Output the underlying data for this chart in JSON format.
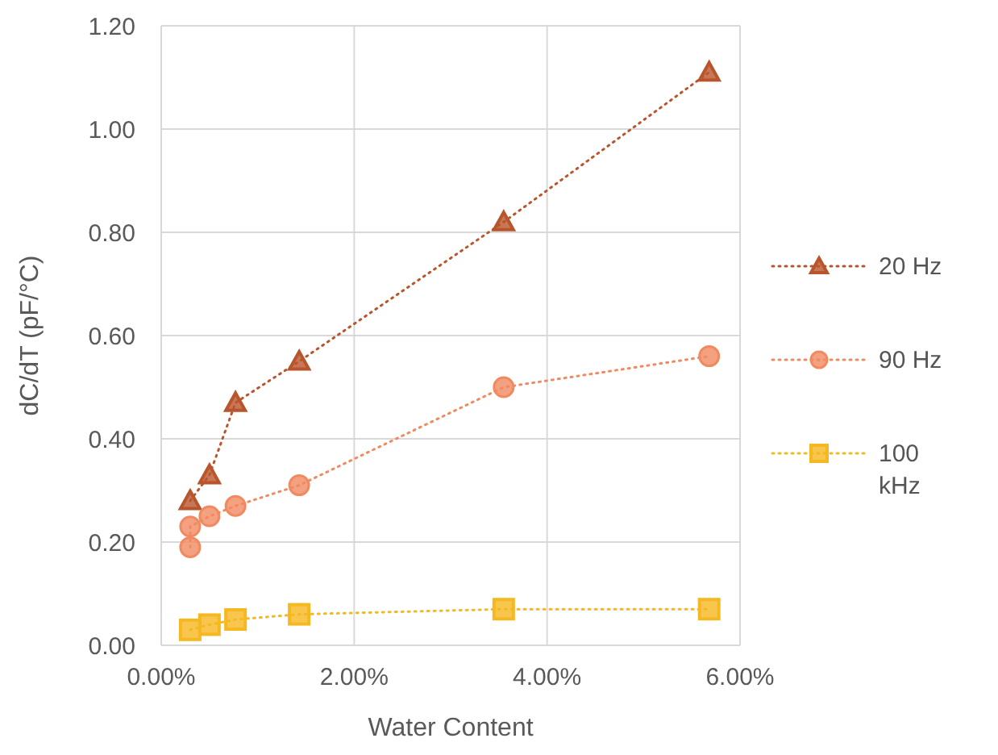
{
  "chart_data": {
    "type": "line",
    "xlabel": "Water Content",
    "ylabel": "dC/dT (pF/°C)",
    "xlim": [
      0,
      6
    ],
    "xticks": [
      {
        "value": 0,
        "label": "0.00%"
      },
      {
        "value": 2,
        "label": "2.00%"
      },
      {
        "value": 4,
        "label": "4.00%"
      },
      {
        "value": 6,
        "label": "6.00%"
      }
    ],
    "ylim": [
      0,
      1.2
    ],
    "yticks": [
      {
        "value": 0,
        "label": "0.00"
      },
      {
        "value": 0.2,
        "label": "0.20"
      },
      {
        "value": 0.4,
        "label": "0.40"
      },
      {
        "value": 0.6,
        "label": "0.60"
      },
      {
        "value": 0.8,
        "label": "0.80"
      },
      {
        "value": 1.0,
        "label": "1.00"
      },
      {
        "value": 1.2,
        "label": "1.20"
      }
    ],
    "grid": true,
    "legend": "right",
    "line_style": "dotted",
    "series": [
      {
        "name": "20 Hz",
        "color": "#b9552c",
        "marker": "triangle",
        "x": [
          0.3,
          0.5,
          0.77,
          1.43,
          3.55,
          5.68
        ],
        "values": [
          0.28,
          0.33,
          0.47,
          0.55,
          0.82,
          1.11
        ]
      },
      {
        "name": "90 Hz",
        "color": "#f08a60",
        "marker": "circle",
        "x": [
          0.3,
          0.3,
          0.5,
          0.77,
          1.43,
          3.55,
          5.68
        ],
        "values": [
          0.19,
          0.23,
          0.25,
          0.27,
          0.31,
          0.5,
          0.56
        ]
      },
      {
        "name": "100 kHz",
        "color": "#f6b820",
        "marker": "square",
        "x": [
          0.3,
          0.5,
          0.77,
          1.43,
          3.55,
          5.68
        ],
        "values": [
          0.03,
          0.04,
          0.05,
          0.06,
          0.07,
          0.07
        ]
      }
    ]
  }
}
